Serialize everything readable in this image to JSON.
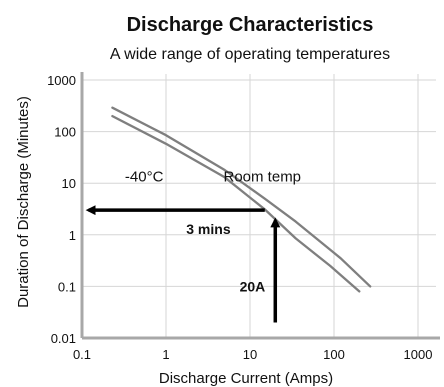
{
  "chart_data": {
    "type": "line",
    "title": "Discharge Characteristics",
    "subtitle": "A wide range of operating temperatures",
    "xlabel": "Discharge Current (Amps)",
    "ylabel": "Duration of Discharge (Minutes)",
    "x_scale": "log",
    "y_scale": "log",
    "xlim": [
      0.1,
      1000
    ],
    "ylim": [
      0.01,
      1000
    ],
    "x_ticks": [
      "0.1",
      "1",
      "10",
      "100",
      "1000"
    ],
    "y_ticks": [
      "0.01",
      "0.1",
      "1",
      "10",
      "100",
      "1000"
    ],
    "grid": true,
    "series": [
      {
        "name": "-40°C",
        "x": [
          0.23,
          1,
          5,
          15,
          35,
          90,
          200
        ],
        "y": [
          200,
          58,
          13,
          3.1,
          0.85,
          0.25,
          0.08
        ]
      },
      {
        "name": "Room temp",
        "x": [
          0.23,
          1,
          5,
          15,
          35,
          120,
          270
        ],
        "y": [
          290,
          85,
          18,
          5,
          1.8,
          0.35,
          0.1
        ]
      }
    ],
    "annotations": [
      {
        "text": "3 mins",
        "arrow": "horizontal",
        "from_x": 15,
        "to_x": 0.12,
        "y": 3
      },
      {
        "text": "20A",
        "arrow": "vertical",
        "x": 20,
        "from_y": 0.02,
        "to_y": 1.9
      }
    ],
    "colors": {
      "series": "#7f7f7f",
      "arrow": "#000000",
      "grid": "#d6d6d6",
      "axis": "#a8a8a8",
      "text": "#111111"
    }
  }
}
